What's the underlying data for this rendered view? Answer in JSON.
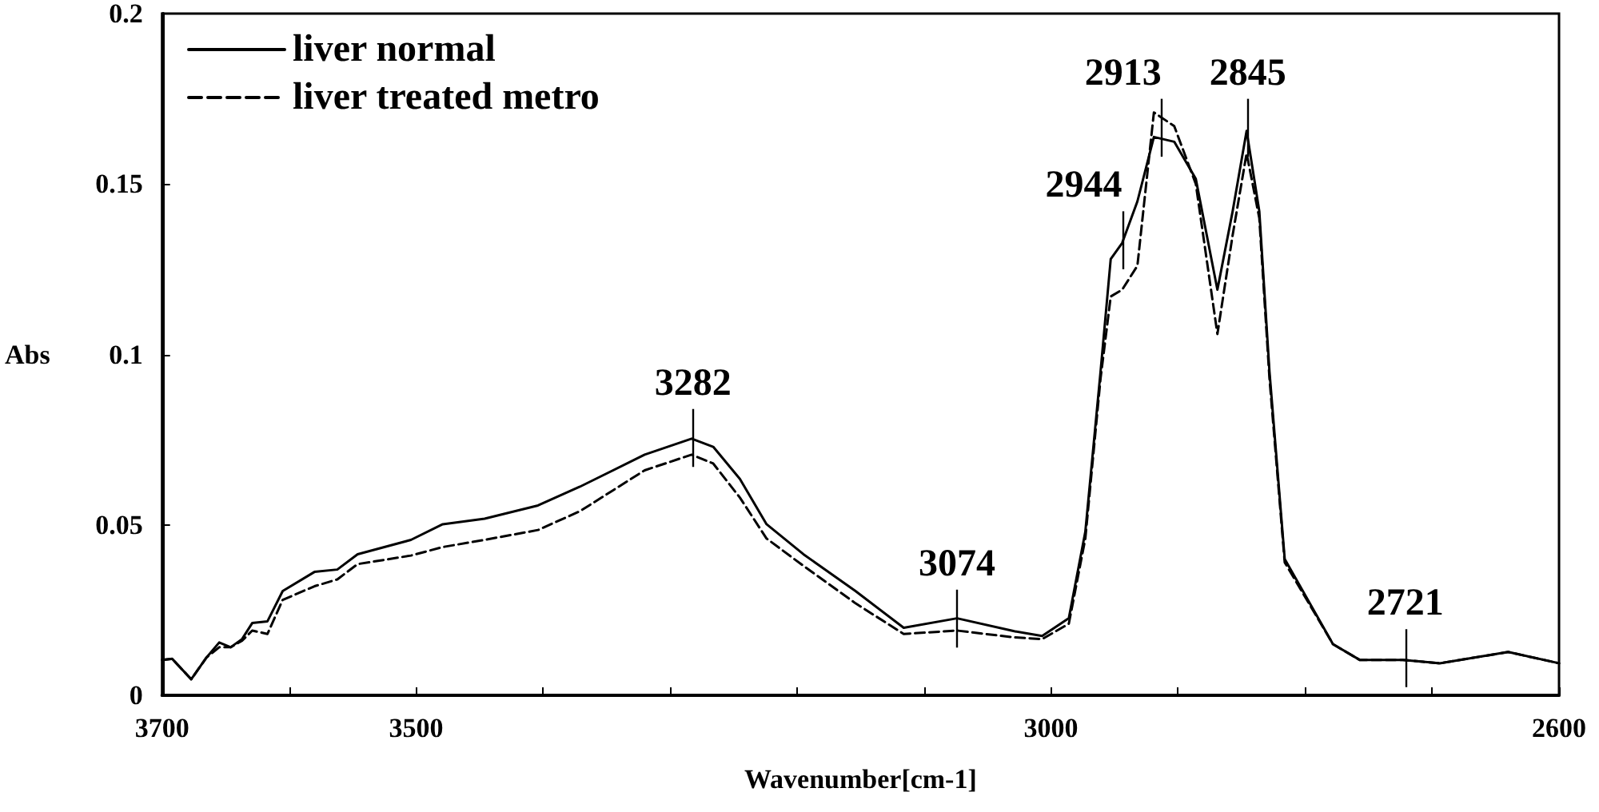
{
  "chart_data": {
    "type": "line",
    "xlabel": "Wavenumber[cm-1]",
    "ylabel": "Abs",
    "xlim": [
      3700,
      2600
    ],
    "xticks": [
      3700,
      {
        "value": 3600,
        "label": null
      },
      3500,
      {
        "value": 3400,
        "label": null
      },
      {
        "value": 3300,
        "label": null
      },
      {
        "value": 3200,
        "label": null
      },
      {
        "value": 3100,
        "label": null
      },
      3000,
      {
        "value": 2900,
        "label": null
      },
      {
        "value": 2800,
        "label": null
      },
      {
        "value": 2700,
        "label": null
      },
      2600
    ],
    "ylim": [
      0,
      0.2
    ],
    "yticks": [
      0,
      0.05,
      0.1,
      0.15,
      0.2
    ],
    "grid": false,
    "legend": "top left",
    "marker": "none",
    "annotations": [
      {
        "text": "3282",
        "x": 3282,
        "y": 0.075
      },
      {
        "text": "3074",
        "x": 3074,
        "y": 0.022
      },
      {
        "text": "2944",
        "x": 2944,
        "y": 0.133
      },
      {
        "text": "2913",
        "x": 2913,
        "y": 0.166
      },
      {
        "text": "2845",
        "x": 2845,
        "y": 0.166
      },
      {
        "text": "2721",
        "x": 2721,
        "y": 0.0104
      }
    ],
    "series": [
      {
        "name": "liver normal",
        "color": "#000000",
        "line_style": "solid",
        "x": [
          3700,
          3692,
          3677,
          3665,
          3655,
          3646,
          3637,
          3629,
          3617,
          3605,
          3580,
          3562,
          3546,
          3504,
          3479,
          3446,
          3404,
          3371,
          3320,
          3283,
          3266,
          3245,
          3224,
          3195,
          3154,
          3116,
          3074,
          3029,
          3007,
          2986,
          2973,
          2961,
          2953,
          2944,
          2932,
          2919,
          2903,
          2886,
          2869,
          2857,
          2846,
          2836,
          2828,
          2816,
          2778,
          2757,
          2723,
          2694,
          2640,
          2600
        ],
        "values": [
          0.0104,
          0.0107,
          0.0047,
          0.0111,
          0.0155,
          0.0141,
          0.0165,
          0.0212,
          0.0217,
          0.0306,
          0.0362,
          0.0369,
          0.0414,
          0.0456,
          0.0502,
          0.0518,
          0.0557,
          0.0612,
          0.0706,
          0.0753,
          0.0729,
          0.0635,
          0.0502,
          0.0414,
          0.0306,
          0.0198,
          0.0226,
          0.0188,
          0.0174,
          0.0226,
          0.048,
          0.095,
          0.128,
          0.1327,
          0.1449,
          0.1638,
          0.1624,
          0.1515,
          0.119,
          0.142,
          0.1656,
          0.142,
          0.095,
          0.04,
          0.015,
          0.0104,
          0.0104,
          0.0094,
          0.0127,
          0.0094
        ]
      },
      {
        "name": "liver treated metro",
        "color": "#000000",
        "line_style": "dashed",
        "x": [
          3700,
          3692,
          3677,
          3665,
          3655,
          3646,
          3637,
          3629,
          3617,
          3605,
          3580,
          3562,
          3546,
          3504,
          3479,
          3446,
          3404,
          3371,
          3320,
          3283,
          3266,
          3245,
          3224,
          3195,
          3154,
          3116,
          3074,
          3029,
          3007,
          2986,
          2973,
          2961,
          2953,
          2944,
          2932,
          2919,
          2903,
          2886,
          2869,
          2857,
          2846,
          2836,
          2828,
          2816,
          2778,
          2757,
          2723,
          2694,
          2640,
          2600
        ],
        "values": [
          0.0104,
          0.0107,
          0.0047,
          0.0111,
          0.0141,
          0.0141,
          0.016,
          0.019,
          0.018,
          0.028,
          0.032,
          0.034,
          0.0385,
          0.041,
          0.0435,
          0.0456,
          0.0485,
          0.054,
          0.066,
          0.0706,
          0.068,
          0.058,
          0.046,
          0.038,
          0.027,
          0.018,
          0.019,
          0.017,
          0.0165,
          0.021,
          0.046,
          0.093,
          0.117,
          0.119,
          0.126,
          0.171,
          0.167,
          0.15,
          0.106,
          0.135,
          0.159,
          0.14,
          0.093,
          0.039,
          0.015,
          0.0104,
          0.0104,
          0.0094,
          0.0127,
          0.0094
        ]
      }
    ]
  }
}
